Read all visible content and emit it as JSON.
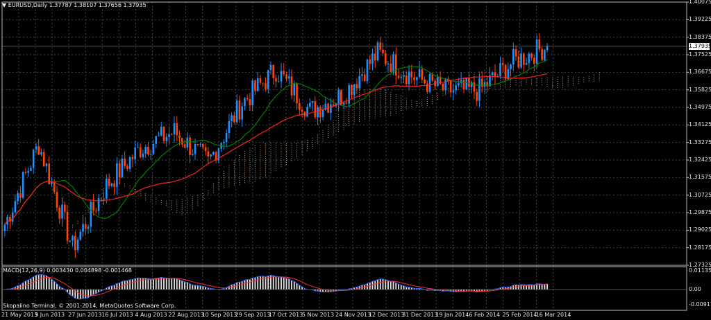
{
  "chart_header": {
    "symbol_title": "EURUSD,Daily",
    "ohlc": "1.37787 1.38107 1.37656 1.37935"
  },
  "price_axis": {
    "ticks": [
      "1.40075",
      "1.39225",
      "1.38375",
      "1.37525",
      "1.36675",
      "1.35825",
      "1.34975",
      "1.34125",
      "1.33275",
      "1.32425",
      "1.31575",
      "1.30725",
      "1.29875",
      "1.29025",
      "1.28175",
      "1.27325"
    ],
    "current_price": "1.37935"
  },
  "time_axis": {
    "ticks": [
      "21 May 2013",
      "9 Jun 2013",
      "27 Jun 2013",
      "16 Jul 2013",
      "4 Aug 2013",
      "22 Aug 2013",
      "10 Sep 2013",
      "29 Sep 2013",
      "17 Oct 2013",
      "5 Nov 2013",
      "24 Nov 2013",
      "12 Dec 2013",
      "31 Dec 2013",
      "19 Jan 2014",
      "6 Feb 2014",
      "25 Feb 2014",
      "16 Mar 2014"
    ]
  },
  "macd": {
    "title": "MACD(12,26,9) 0.003430 0.004898 -0.001468",
    "ticks": [
      "0.01135",
      "0.00",
      "-0.009175"
    ]
  },
  "footer": {
    "copyright": "Skopalino Terminal, © 2001-2014, MetaQuotes Software Corp."
  },
  "colors": {
    "background": "#000000",
    "grid": "#3a4a4a",
    "bull_candle": "#1e90ff",
    "bear_candle": "#ff4500",
    "ma_fast": "#008000",
    "ma_slow": "#ff2020",
    "cloud": "#f5c8a0",
    "macd_hist": "#e0e0e0",
    "macd_main": "#3060ff",
    "macd_signal": "#ff3030"
  },
  "chart_data": {
    "type": "candlestick",
    "symbol": "EURUSD",
    "timeframe": "Daily",
    "last_bar": {
      "open": 1.37787,
      "high": 1.38107,
      "low": 1.37656,
      "close": 1.37935
    },
    "y_range": [
      1.27325,
      1.40075
    ],
    "x_range": [
      "21 May 2013",
      "16 Mar 2014"
    ],
    "key_closes": [
      {
        "date": "21 May 2013",
        "close": 1.293
      },
      {
        "date": "9 Jun 2013",
        "close": 1.332
      },
      {
        "date": "27 Jun 2013",
        "close": 1.282
      },
      {
        "date": "16 Jul 2013",
        "close": 1.312
      },
      {
        "date": "4 Aug 2013",
        "close": 1.33
      },
      {
        "date": "22 Aug 2013",
        "close": 1.338
      },
      {
        "date": "10 Sep 2013",
        "close": 1.323
      },
      {
        "date": "29 Sep 2013",
        "close": 1.352
      },
      {
        "date": "17 Oct 2013",
        "close": 1.368
      },
      {
        "date": "5 Nov 2013",
        "close": 1.348
      },
      {
        "date": "24 Nov 2013",
        "close": 1.356
      },
      {
        "date": "12 Dec 2013",
        "close": 1.376
      },
      {
        "date": "31 Dec 2013",
        "close": 1.365
      },
      {
        "date": "19 Jan 2014",
        "close": 1.358
      },
      {
        "date": "6 Feb 2014",
        "close": 1.358
      },
      {
        "date": "25 Feb 2014",
        "close": 1.372
      },
      {
        "date": "16 Mar 2014",
        "close": 1.3794
      }
    ],
    "grid": true
  }
}
